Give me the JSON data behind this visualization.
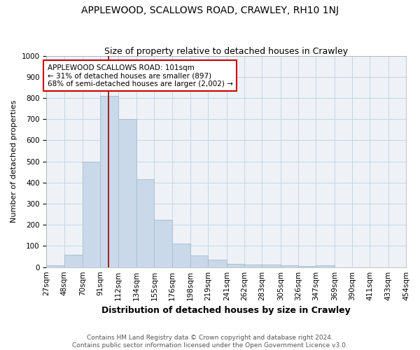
{
  "title": "APPLEWOOD, SCALLOWS ROAD, CRAWLEY, RH10 1NJ",
  "subtitle": "Size of property relative to detached houses in Crawley",
  "xlabel": "Distribution of detached houses by size in Crawley",
  "ylabel": "Number of detached properties",
  "bar_color": "#c9d9ea",
  "bar_edge_color": "#aabfcf",
  "grid_color": "#c8d4e0",
  "background_color": "#eef2f7",
  "vline_x": 101,
  "vline_color": "#990000",
  "annotation_text": "APPLEWOOD SCALLOWS ROAD: 101sqm\n← 31% of detached houses are smaller (897)\n68% of semi-detached houses are larger (2,002) →",
  "annotation_box_color": "#ffffff",
  "annotation_box_edge": "#cc0000",
  "bin_edges": [
    27,
    48,
    70,
    91,
    112,
    134,
    155,
    176,
    198,
    219,
    241,
    262,
    283,
    305,
    326,
    347,
    369,
    390,
    411,
    433,
    454
  ],
  "bar_heights": [
    8,
    57,
    500,
    810,
    700,
    415,
    225,
    113,
    55,
    35,
    15,
    13,
    12,
    8,
    6,
    8,
    0,
    0,
    0,
    0
  ],
  "ylim": [
    0,
    1000
  ],
  "yticks": [
    0,
    100,
    200,
    300,
    400,
    500,
    600,
    700,
    800,
    900,
    1000
  ],
  "footnote": "Contains HM Land Registry data © Crown copyright and database right 2024.\nContains public sector information licensed under the Open Government Licence v3.0.",
  "title_fontsize": 10,
  "subtitle_fontsize": 9,
  "xlabel_fontsize": 9,
  "ylabel_fontsize": 8,
  "tick_fontsize": 7.5,
  "footnote_fontsize": 6.5,
  "annot_fontsize": 7.5
}
